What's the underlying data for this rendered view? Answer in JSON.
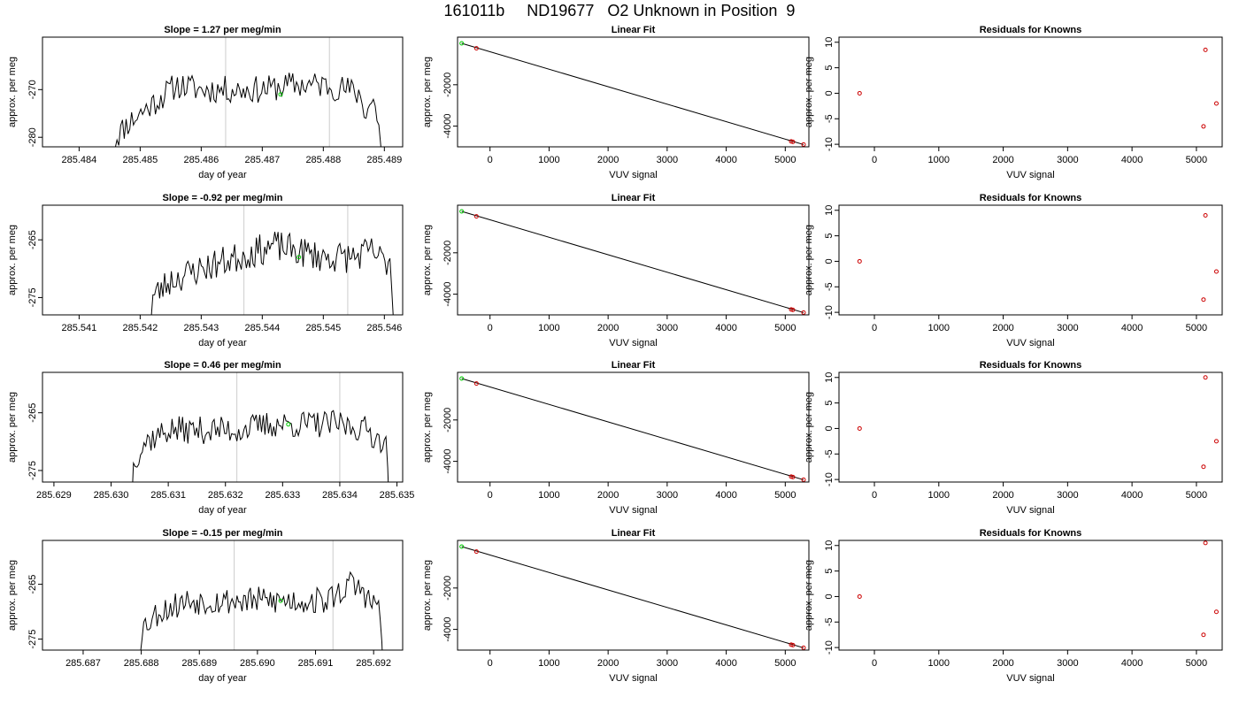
{
  "page_title": "161011b     ND19677   O2 Unknown in Position  9",
  "colors": {
    "line": "#000000",
    "time_marker": "#cccccc",
    "known_point": "#cc0000",
    "highlight_point": "#00cc00",
    "fit_line": "#000000"
  },
  "chart_data": [
    {
      "type": "line",
      "row": 1,
      "col": 1,
      "title": "Slope =  1.27  per meg/min",
      "xlabel": "day of year",
      "ylabel": "approx. per meg",
      "xlim": [
        285.4834,
        285.4893
      ],
      "ylim": [
        -282,
        -259
      ],
      "x_ticks": [
        "285.484",
        "285.485",
        "285.486",
        "285.487",
        "285.488",
        "285.489"
      ],
      "y_ticks": [
        "-280",
        "-270"
      ],
      "vlines": [
        285.4864,
        285.4881
      ],
      "line": {
        "x_start": 285.4845,
        "x_end": 285.489,
        "seed": 11,
        "profile": [
          [
            285.4845,
            -290
          ],
          [
            285.4846,
            -280
          ],
          [
            285.4848,
            -277
          ],
          [
            285.4852,
            -273
          ],
          [
            285.4856,
            -269
          ],
          [
            285.486,
            -270
          ],
          [
            285.4864,
            -270
          ],
          [
            285.487,
            -270
          ],
          [
            285.4875,
            -269
          ],
          [
            285.488,
            -269
          ],
          [
            285.4884,
            -270
          ],
          [
            285.4886,
            -271
          ],
          [
            285.4887,
            -275
          ],
          [
            285.4888,
            -272
          ],
          [
            285.4889,
            -276
          ],
          [
            285.489,
            -290
          ]
        ],
        "noise": 1.8
      },
      "highlight": {
        "x": 285.4873,
        "y": -271
      }
    },
    {
      "type": "scatter",
      "row": 1,
      "col": 2,
      "title": "Linear Fit",
      "xlabel": "VUV signal",
      "ylabel": "approx. per meg",
      "xlim": [
        -550,
        5400
      ],
      "ylim": [
        -5000,
        300
      ],
      "x_ticks": [
        "0",
        "1000",
        "2000",
        "3000",
        "4000",
        "5000"
      ],
      "y_ticks": [
        "-2000",
        "-4000"
      ],
      "fit": [
        [
          -480,
          0
        ],
        [
          5310,
          -4890
        ]
      ],
      "known_points": [
        [
          -230,
          -240
        ],
        [
          5100,
          -4740
        ],
        [
          5130,
          -4760
        ],
        [
          5310,
          -4890
        ]
      ],
      "highlight": {
        "x": -480,
        "y": 0
      }
    },
    {
      "type": "scatter",
      "row": 1,
      "col": 3,
      "title": "Residuals for Knowns",
      "xlabel": "VUV signal",
      "ylabel": "approx. per meg",
      "xlim": [
        -550,
        5400
      ],
      "ylim": [
        -10.5,
        11
      ],
      "x_ticks": [
        "0",
        "1000",
        "2000",
        "3000",
        "4000",
        "5000"
      ],
      "y_ticks": [
        "10",
        "5",
        "0",
        "-5",
        "-10"
      ],
      "known_points": [
        [
          -230,
          0
        ],
        [
          5140,
          8.5
        ],
        [
          5310,
          -2
        ],
        [
          5110,
          -6.5
        ]
      ]
    },
    {
      "type": "line",
      "row": 2,
      "col": 1,
      "title": "Slope =  -0.92  per meg/min",
      "xlabel": "day of year",
      "ylabel": "approx. per meg",
      "xlim": [
        285.5404,
        285.5463
      ],
      "ylim": [
        -278,
        -259
      ],
      "x_ticks": [
        "285.541",
        "285.542",
        "285.543",
        "285.544",
        "285.545",
        "285.546"
      ],
      "y_ticks": [
        "-265",
        "-275"
      ],
      "vlines": [
        285.5437,
        285.5454
      ],
      "line": {
        "x_start": 285.5421,
        "x_end": 285.5462,
        "seed": 23,
        "profile": [
          [
            285.5421,
            -290
          ],
          [
            285.5422,
            -275
          ],
          [
            285.5425,
            -272
          ],
          [
            285.543,
            -270
          ],
          [
            285.5436,
            -268
          ],
          [
            285.5442,
            -266
          ],
          [
            285.5446,
            -267
          ],
          [
            285.545,
            -268
          ],
          [
            285.5455,
            -268
          ],
          [
            285.5458,
            -267
          ],
          [
            285.546,
            -269
          ],
          [
            285.5461,
            -268
          ],
          [
            285.5462,
            -290
          ]
        ],
        "noise": 1.7
      },
      "highlight": {
        "x": 285.5446,
        "y": -268
      }
    },
    {
      "type": "scatter",
      "row": 2,
      "col": 2,
      "title": "Linear Fit",
      "xlabel": "VUV signal",
      "ylabel": "approx. per meg",
      "xlim": [
        -550,
        5400
      ],
      "ylim": [
        -5000,
        300
      ],
      "x_ticks": [
        "0",
        "1000",
        "2000",
        "3000",
        "4000",
        "5000"
      ],
      "y_ticks": [
        "-2000",
        "-4000"
      ],
      "fit": [
        [
          -480,
          0
        ],
        [
          5310,
          -4890
        ]
      ],
      "known_points": [
        [
          -230,
          -240
        ],
        [
          5100,
          -4740
        ],
        [
          5130,
          -4760
        ],
        [
          5310,
          -4890
        ]
      ],
      "highlight": {
        "x": -480,
        "y": 0
      }
    },
    {
      "type": "scatter",
      "row": 2,
      "col": 3,
      "title": "Residuals for Knowns",
      "xlabel": "VUV signal",
      "ylabel": "approx. per meg",
      "xlim": [
        -550,
        5400
      ],
      "ylim": [
        -10.5,
        11
      ],
      "x_ticks": [
        "0",
        "1000",
        "2000",
        "3000",
        "4000",
        "5000"
      ],
      "y_ticks": [
        "10",
        "5",
        "0",
        "-5",
        "-10"
      ],
      "known_points": [
        [
          -230,
          0
        ],
        [
          5140,
          9
        ],
        [
          5310,
          -2
        ],
        [
          5110,
          -7.5
        ]
      ]
    },
    {
      "type": "line",
      "row": 3,
      "col": 1,
      "title": "Slope =  0.46  per meg/min",
      "xlabel": "day of year",
      "ylabel": "approx. per meg",
      "xlim": [
        285.6288,
        285.6351
      ],
      "ylim": [
        -277,
        -258
      ],
      "x_ticks": [
        "285.629",
        "285.630",
        "285.631",
        "285.632",
        "285.633",
        "285.634",
        "285.635"
      ],
      "y_ticks": [
        "-265",
        "-275"
      ],
      "vlines": [
        285.6322,
        285.634
      ],
      "line": {
        "x_start": 285.6303,
        "x_end": 285.6349,
        "seed": 37,
        "profile": [
          [
            285.6303,
            -290
          ],
          [
            285.6304,
            -273
          ],
          [
            285.6306,
            -270
          ],
          [
            285.631,
            -268
          ],
          [
            285.6316,
            -268
          ],
          [
            285.6322,
            -268
          ],
          [
            285.6328,
            -267
          ],
          [
            285.6334,
            -267
          ],
          [
            285.634,
            -267
          ],
          [
            285.6345,
            -268
          ],
          [
            285.6347,
            -270
          ],
          [
            285.6348,
            -268
          ],
          [
            285.6349,
            -290
          ]
        ],
        "noise": 1.5
      },
      "highlight": {
        "x": 285.6331,
        "y": -267
      }
    },
    {
      "type": "scatter",
      "row": 3,
      "col": 2,
      "title": "Linear Fit",
      "xlabel": "VUV signal",
      "ylabel": "approx. per meg",
      "xlim": [
        -550,
        5400
      ],
      "ylim": [
        -5000,
        300
      ],
      "x_ticks": [
        "0",
        "1000",
        "2000",
        "3000",
        "4000",
        "5000"
      ],
      "y_ticks": [
        "-2000",
        "-4000"
      ],
      "fit": [
        [
          -480,
          0
        ],
        [
          5310,
          -4890
        ]
      ],
      "known_points": [
        [
          -230,
          -240
        ],
        [
          5100,
          -4740
        ],
        [
          5130,
          -4760
        ],
        [
          5310,
          -4890
        ]
      ],
      "highlight": {
        "x": -480,
        "y": 0
      }
    },
    {
      "type": "scatter",
      "row": 3,
      "col": 3,
      "title": "Residuals for Knowns",
      "xlabel": "VUV signal",
      "ylabel": "approx. per meg",
      "xlim": [
        -550,
        5400
      ],
      "ylim": [
        -10.5,
        11
      ],
      "x_ticks": [
        "0",
        "1000",
        "2000",
        "3000",
        "4000",
        "5000"
      ],
      "y_ticks": [
        "10",
        "5",
        "0",
        "-5",
        "-10"
      ],
      "known_points": [
        [
          -230,
          0
        ],
        [
          5140,
          10
        ],
        [
          5310,
          -2.5
        ],
        [
          5110,
          -7.5
        ]
      ]
    },
    {
      "type": "line",
      "row": 4,
      "col": 1,
      "title": "Slope =  -0.15  per meg/min",
      "xlabel": "day of year",
      "ylabel": "approx. per meg",
      "xlim": [
        285.6863,
        285.6925
      ],
      "ylim": [
        -277,
        -257
      ],
      "x_ticks": [
        "285.687",
        "285.688",
        "285.689",
        "285.690",
        "285.691",
        "285.692"
      ],
      "y_ticks": [
        "-265",
        "-275"
      ],
      "vlines": [
        285.6896,
        285.6913
      ],
      "line": {
        "x_start": 285.6879,
        "x_end": 285.6922,
        "seed": 53,
        "profile": [
          [
            285.6879,
            -290
          ],
          [
            285.688,
            -273
          ],
          [
            285.6883,
            -270
          ],
          [
            285.6888,
            -268
          ],
          [
            285.6894,
            -268
          ],
          [
            285.69,
            -268
          ],
          [
            285.6906,
            -268
          ],
          [
            285.6912,
            -268
          ],
          [
            285.6916,
            -265
          ],
          [
            285.6918,
            -266
          ],
          [
            285.692,
            -269
          ],
          [
            285.6921,
            -268
          ],
          [
            285.6922,
            -290
          ]
        ],
        "noise": 1.6
      },
      "highlight": {
        "x": 285.6904,
        "y": -268
      }
    },
    {
      "type": "scatter",
      "row": 4,
      "col": 2,
      "title": "Linear Fit",
      "xlabel": "VUV signal",
      "ylabel": "approx. per meg",
      "xlim": [
        -550,
        5400
      ],
      "ylim": [
        -5000,
        300
      ],
      "x_ticks": [
        "0",
        "1000",
        "2000",
        "3000",
        "4000",
        "5000"
      ],
      "y_ticks": [
        "-2000",
        "-4000"
      ],
      "fit": [
        [
          -480,
          0
        ],
        [
          5310,
          -4890
        ]
      ],
      "known_points": [
        [
          -230,
          -240
        ],
        [
          5100,
          -4740
        ],
        [
          5130,
          -4760
        ],
        [
          5310,
          -4890
        ]
      ],
      "highlight": {
        "x": -480,
        "y": 0
      }
    },
    {
      "type": "scatter",
      "row": 4,
      "col": 3,
      "title": "Residuals for Knowns",
      "xlabel": "VUV signal",
      "ylabel": "approx. per meg",
      "xlim": [
        -550,
        5400
      ],
      "ylim": [
        -10.5,
        11
      ],
      "x_ticks": [
        "0",
        "1000",
        "2000",
        "3000",
        "4000",
        "5000"
      ],
      "y_ticks": [
        "10",
        "5",
        "0",
        "-5",
        "-10"
      ],
      "known_points": [
        [
          -230,
          0
        ],
        [
          5140,
          10.5
        ],
        [
          5310,
          -3
        ],
        [
          5110,
          -7.5
        ]
      ]
    }
  ]
}
